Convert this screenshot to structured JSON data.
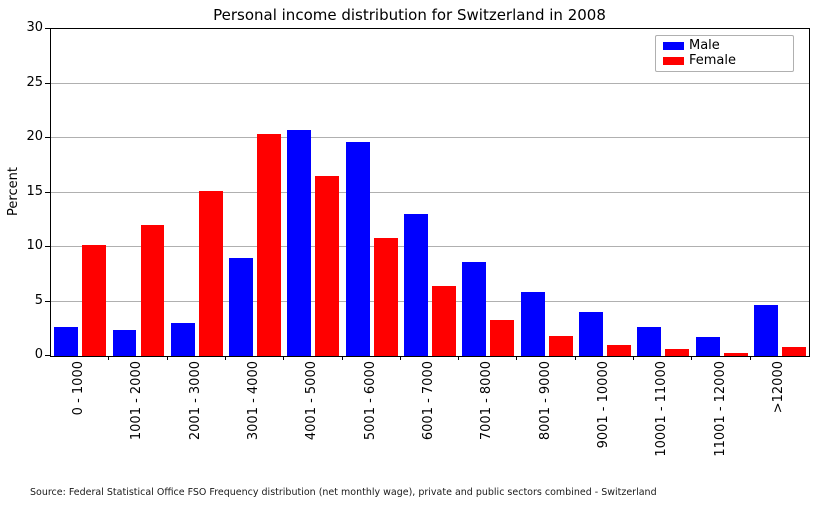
{
  "chart_data": {
    "type": "bar",
    "title": "Personal income distribution for Switzerland in 2008",
    "xlabel": "",
    "ylabel": "Percent",
    "categories": [
      "0 - 1000",
      "1001 - 2000",
      "2001 - 3000",
      "3001 - 4000",
      "4001 - 5000",
      "5001 - 6000",
      "6001 - 7000",
      "7001 - 8000",
      "8001 - 9000",
      "9001 - 10000",
      "10001 - 11000",
      "11001 - 12000",
      ">12000"
    ],
    "series": [
      {
        "name": "Male",
        "color": "#0000ff",
        "values": [
          2.7,
          2.4,
          3.0,
          9.0,
          20.7,
          19.6,
          13.0,
          8.6,
          5.9,
          4.0,
          2.7,
          1.7,
          4.7
        ]
      },
      {
        "name": "Female",
        "color": "#ff0000",
        "values": [
          10.2,
          12.0,
          15.1,
          20.4,
          16.5,
          10.8,
          6.4,
          3.3,
          1.8,
          1.0,
          0.6,
          0.3,
          0.8
        ]
      }
    ],
    "ylim": [
      0,
      30
    ],
    "yticks": [
      0,
      5,
      10,
      15,
      20,
      25,
      30
    ],
    "grid": true,
    "grid_color": "#b0b0b0",
    "axis_color": "#000000",
    "legend_position": "top-right",
    "source_note": "Source: Federal Statistical Office FSO Frequency distribution (net monthly wage), private and public sectors combined - Switzerland"
  }
}
